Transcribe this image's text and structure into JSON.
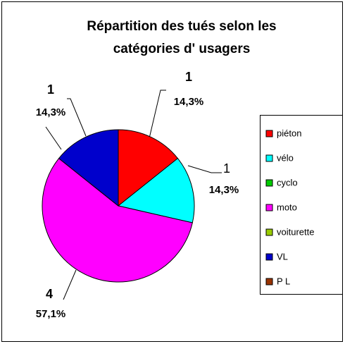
{
  "chart_data": {
    "type": "pie",
    "title": "Répartition des tués selon les",
    "subtitle": "catégories d' usagers",
    "categories": [
      "piéton",
      "vélo",
      "cyclo",
      "moto",
      "voiturette",
      "VL",
      "P L"
    ],
    "values": [
      1,
      1,
      0,
      4,
      0,
      1,
      0
    ],
    "percent_labels": [
      "14,3%",
      "14,3%",
      null,
      "57,1%",
      null,
      "14,3%",
      null
    ],
    "colors": [
      "#ff0000",
      "#00ffff",
      "#00cc00",
      "#ff00ff",
      "#99cc00",
      "#0000cc",
      "#993300"
    ],
    "legend": "right"
  }
}
